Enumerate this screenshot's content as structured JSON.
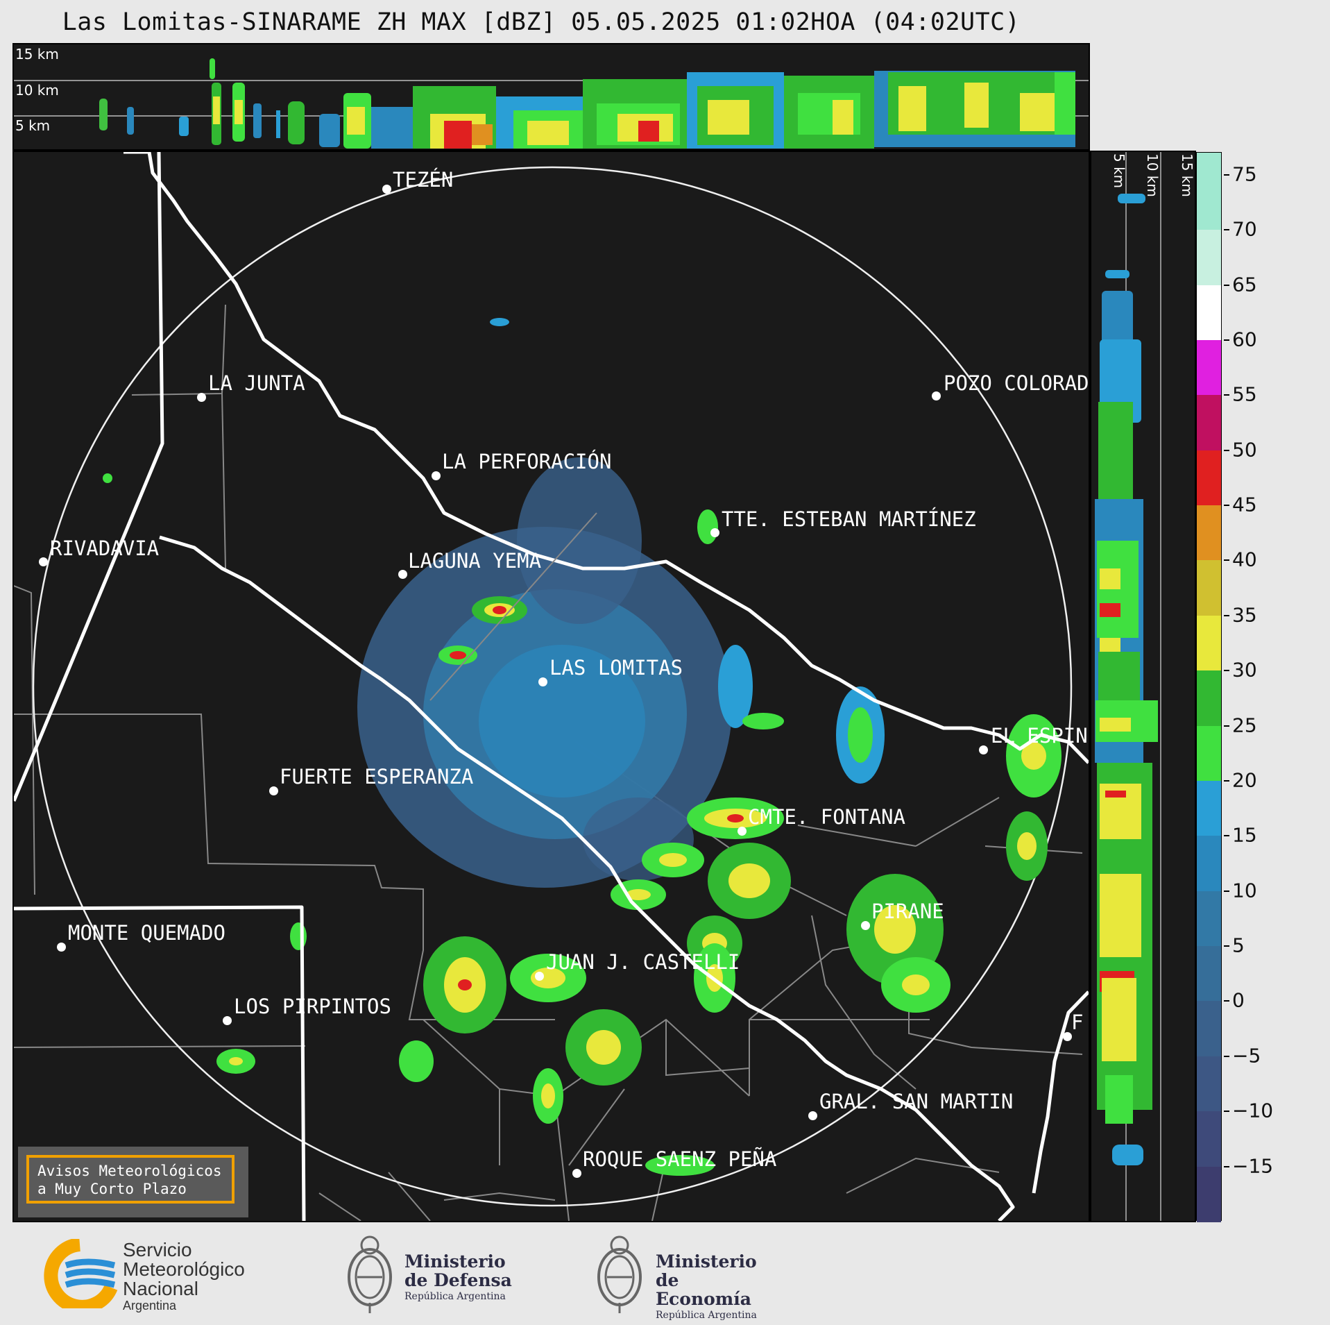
{
  "title": "Las Lomitas-SINARAME ZH MAX [dBZ] 05.05.2025 01:02HOA (04:02UTC)",
  "top_altitude_labels": [
    "15 km",
    "10 km",
    "5 km"
  ],
  "side_altitude_labels": [
    "5 km",
    "10 km",
    "15 km"
  ],
  "colorbar": {
    "unit": "dBZ",
    "ticks": [
      "75",
      "70",
      "65",
      "60",
      "55",
      "50",
      "45",
      "40",
      "35",
      "30",
      "25",
      "20",
      "15",
      "10",
      "5",
      "0",
      "−5",
      "−10",
      "−15"
    ],
    "colors": {
      "-20": "#3d3d6e",
      "-15": "#3e4a7a",
      "-10": "#3d5784",
      "-5": "#3a618c",
      "0": "#366e99",
      "5": "#3279a6",
      "10": "#2a88bd",
      "15": "#2a9fd6",
      "20": "#40e040",
      "25": "#32b832",
      "30": "#e8e83c",
      "35": "#d0c030",
      "40": "#e09020",
      "45": "#e02020",
      "50": "#c01060",
      "55": "#e020e0",
      "60": "#ffffff",
      "65": "#c8f0e0",
      "70": "#a0e8d0"
    }
  },
  "cities": [
    {
      "name": "TEZÉN"
    },
    {
      "name": "LA JUNTA"
    },
    {
      "name": "POZO COLORAD"
    },
    {
      "name": "LA PERFORACIÓN"
    },
    {
      "name": "TTE. ESTEBAN MARTÍNEZ"
    },
    {
      "name": "RIVADAVIA"
    },
    {
      "name": "LAGUNA YEMA"
    },
    {
      "name": "LAS LOMITAS"
    },
    {
      "name": "EL ESPIN"
    },
    {
      "name": "FUERTE ESPERANZA"
    },
    {
      "name": "CMTE. FONTANA"
    },
    {
      "name": "PIRANE"
    },
    {
      "name": "MONTE QUEMADO"
    },
    {
      "name": "JUAN J. CASTELLI"
    },
    {
      "name": "LOS PIRPINTOS"
    },
    {
      "name": "F"
    },
    {
      "name": "GRAL. SAN MARTIN"
    },
    {
      "name": "ROQUE SAENZ PEÑA"
    }
  ],
  "warning_box": {
    "line1": "Avisos Meteorológicos",
    "line2": "a Muy Corto Plazo",
    "border_color": "#f0a000"
  },
  "logos": {
    "smn": {
      "line1": "Servicio",
      "line2": "Meteorológico",
      "line3": "Nacional",
      "line4": "Argentina"
    },
    "defensa": {
      "line1": "Ministerio",
      "line2": "de Defensa",
      "line3": "República Argentina"
    },
    "economia": {
      "line1": "Ministerio",
      "line2": "de Economía",
      "line3": "República Argentina"
    }
  }
}
